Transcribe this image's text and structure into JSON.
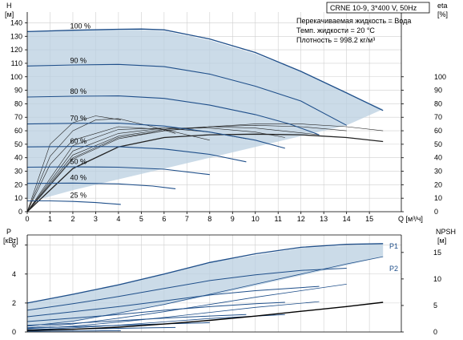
{
  "info": {
    "title": "CRNE 10-9, 3*400 V, 50Hz",
    "lines": [
      "Перекачиваемая жидкость = Вода",
      "Темп. жидкости = 20 °C",
      "Плотность = 998.2 кг/м³"
    ]
  },
  "colors": {
    "curve": "#1f4f8a",
    "eta": "#222222",
    "envelope": "#b9cfe0",
    "grid": "#cfcfcf",
    "npsh": "#000000"
  },
  "chart_data": [
    {
      "type": "line",
      "name": "head",
      "x_unit_label": "Q [м³/ч]",
      "y_left_label": [
        "H",
        "[м]"
      ],
      "y_right_label": [
        "eta",
        "[%]"
      ],
      "xlim": [
        0,
        16.4
      ],
      "ylim": [
        0,
        148
      ],
      "y_right_lim": [
        0,
        148
      ],
      "x_ticks": [
        0,
        1,
        2,
        3,
        4,
        5,
        6,
        7,
        8,
        9,
        10,
        11,
        12,
        13,
        14,
        15
      ],
      "y_left_ticks": [
        0,
        10,
        20,
        30,
        40,
        50,
        60,
        70,
        80,
        90,
        100,
        110,
        120,
        130,
        140
      ],
      "y_right_ticks": [
        0,
        10,
        20,
        30,
        40,
        50,
        60,
        70,
        80,
        90,
        100
      ],
      "grid": true,
      "envelope": [
        [
          0,
          134
        ],
        [
          2,
          134.8
        ],
        [
          4,
          135.5
        ],
        [
          6,
          134
        ],
        [
          8,
          127
        ],
        [
          10,
          117
        ],
        [
          12,
          104
        ],
        [
          14,
          88
        ],
        [
          15.6,
          76
        ],
        [
          14,
          64
        ],
        [
          12,
          56
        ],
        [
          10,
          48
        ],
        [
          8,
          40
        ],
        [
          6,
          32
        ],
        [
          4,
          24
        ],
        [
          2,
          16
        ],
        [
          0.5,
          9
        ],
        [
          0,
          9
        ]
      ],
      "speed_curves": [
        {
          "label": "100 %",
          "label_x": 1.0,
          "points": [
            [
              0,
              133.5
            ],
            [
              2,
              134.5
            ],
            [
              4,
              135.2
            ],
            [
              5,
              135.4
            ],
            [
              6,
              134.8
            ],
            [
              8,
              128
            ],
            [
              10,
              118
            ],
            [
              12,
              104
            ],
            [
              14,
              88
            ],
            [
              15.6,
              75
            ]
          ]
        },
        {
          "label": "90 %",
          "label_x": 1.0,
          "points": [
            [
              0,
              108
            ],
            [
              2,
              108.8
            ],
            [
              4,
              109.2
            ],
            [
              6,
              107.5
            ],
            [
              8,
              102
            ],
            [
              10,
              93
            ],
            [
              12,
              82
            ],
            [
              14,
              64
            ]
          ]
        },
        {
          "label": "80 %",
          "label_x": 1.0,
          "points": [
            [
              0,
              85
            ],
            [
              2,
              85.6
            ],
            [
              4,
              85.8
            ],
            [
              6,
              84
            ],
            [
              8,
              79
            ],
            [
              10,
              72
            ],
            [
              11.5,
              65
            ],
            [
              12.8,
              57
            ]
          ]
        },
        {
          "label": "70 %",
          "label_x": 1.0,
          "points": [
            [
              0,
              65
            ],
            [
              2,
              65.5
            ],
            [
              4,
              65.6
            ],
            [
              6,
              63.5
            ],
            [
              8,
              59
            ],
            [
              10,
              53
            ],
            [
              11.3,
              47
            ]
          ]
        },
        {
          "label": "60 %",
          "label_x": 1.0,
          "points": [
            [
              0,
              48
            ],
            [
              2,
              48.3
            ],
            [
              4,
              48.2
            ],
            [
              6,
              46.5
            ],
            [
              8,
              42.5
            ],
            [
              9.6,
              37
            ]
          ]
        },
        {
          "label": "50 %",
          "label_x": 1.0,
          "points": [
            [
              0,
              33
            ],
            [
              2,
              33.2
            ],
            [
              4,
              33
            ],
            [
              6,
              31.5
            ],
            [
              8,
              27.5
            ]
          ]
        },
        {
          "label": "40 %",
          "label_x": 1.0,
          "points": [
            [
              0,
              21
            ],
            [
              2,
              21.2
            ],
            [
              4,
              20.6
            ],
            [
              5.5,
              19
            ],
            [
              6.5,
              17
            ]
          ]
        },
        {
          "label": "25 %",
          "label_x": 1.0,
          "points": [
            [
              0,
              8
            ],
            [
              1,
              8
            ],
            [
              2,
              7.6
            ],
            [
              3,
              6.8
            ],
            [
              4.1,
              5.4
            ]
          ]
        }
      ],
      "eta_curves": [
        {
          "points": [
            [
              0,
              0
            ],
            [
              2,
              39
            ],
            [
              4,
              54
            ],
            [
              6,
              60
            ],
            [
              8,
              63
            ],
            [
              10,
              65
            ],
            [
              12,
              65
            ],
            [
              14,
              63
            ],
            [
              15.6,
              60
            ]
          ]
        },
        {
          "points": [
            [
              0,
              0
            ],
            [
              2,
              40
            ],
            [
              4,
              55
            ],
            [
              6,
              60
            ],
            [
              8,
              63
            ],
            [
              10,
              64
            ],
            [
              12,
              63
            ],
            [
              14,
              60
            ]
          ]
        },
        {
          "points": [
            [
              0,
              0
            ],
            [
              2,
              42
            ],
            [
              4,
              56
            ],
            [
              6,
              61
            ],
            [
              8,
              63
            ],
            [
              10,
              62
            ],
            [
              12.8,
              57
            ]
          ]
        },
        {
          "points": [
            [
              0,
              0
            ],
            [
              2,
              45
            ],
            [
              4,
              58
            ],
            [
              6,
              62
            ],
            [
              8,
              62
            ],
            [
              10,
              59
            ],
            [
              11.3,
              55
            ]
          ]
        },
        {
          "points": [
            [
              0,
              0
            ],
            [
              2,
              49
            ],
            [
              4,
              61
            ],
            [
              6,
              62
            ],
            [
              8,
              59
            ],
            [
              9.6,
              54
            ]
          ]
        },
        {
          "points": [
            [
              0,
              0
            ],
            [
              1,
              35
            ],
            [
              2,
              53
            ],
            [
              4,
              63
            ],
            [
              6,
              61
            ],
            [
              8,
              53
            ]
          ]
        },
        {
          "points": [
            [
              0,
              0
            ],
            [
              1,
              41
            ],
            [
              2,
              60
            ],
            [
              3,
              68
            ],
            [
              4,
              69
            ],
            [
              5.5,
              63
            ],
            [
              6.5,
              58
            ]
          ]
        },
        {
          "points": [
            [
              0,
              0
            ],
            [
              1,
              50
            ],
            [
              2,
              66
            ],
            [
              3,
              71
            ],
            [
              4.1,
              68
            ]
          ]
        }
      ],
      "eta_main": {
        "points": [
          [
            0,
            0
          ],
          [
            2,
            32
          ],
          [
            4,
            48
          ],
          [
            6,
            55
          ],
          [
            8,
            57
          ],
          [
            10,
            57.5
          ],
          [
            12,
            57
          ],
          [
            14,
            55
          ],
          [
            15.6,
            52
          ]
        ]
      }
    },
    {
      "type": "line",
      "name": "power",
      "y_left_label": [
        "P",
        "[кВт]"
      ],
      "y_right_label": [
        "NPSH",
        "[м]"
      ],
      "xlim": [
        0,
        16.4
      ],
      "ylim": [
        0,
        6.7
      ],
      "y_right_lim": [
        0,
        18.3
      ],
      "y_left_ticks": [
        0,
        2,
        4,
        6
      ],
      "y_right_ticks": [
        0,
        5,
        10,
        15
      ],
      "grid": true,
      "series_labels": [
        "P1",
        "P2"
      ],
      "envelope": [
        [
          0,
          2.0
        ],
        [
          4,
          3.3
        ],
        [
          8,
          4.8
        ],
        [
          12,
          5.8
        ],
        [
          15.6,
          6.1
        ],
        [
          15.6,
          5.2
        ],
        [
          14,
          4.6
        ],
        [
          12,
          3.9
        ],
        [
          10,
          3.2
        ],
        [
          8,
          2.5
        ],
        [
          6,
          1.9
        ],
        [
          4,
          1.25
        ],
        [
          2,
          0.7
        ],
        [
          0,
          0.4
        ]
      ],
      "p1_curves": [
        {
          "points": [
            [
              0,
              2.0
            ],
            [
              2,
              2.6
            ],
            [
              4,
              3.25
            ],
            [
              6,
              4.0
            ],
            [
              8,
              4.8
            ],
            [
              10,
              5.4
            ],
            [
              12,
              5.85
            ],
            [
              14,
              6.05
            ],
            [
              15.6,
              6.1
            ]
          ]
        },
        {
          "points": [
            [
              0,
              1.5
            ],
            [
              2,
              1.95
            ],
            [
              4,
              2.45
            ],
            [
              6,
              3.0
            ],
            [
              8,
              3.55
            ],
            [
              10,
              3.95
            ],
            [
              12,
              4.25
            ],
            [
              14,
              4.4
            ]
          ]
        },
        {
          "points": [
            [
              0,
              1.05
            ],
            [
              2,
              1.4
            ],
            [
              4,
              1.75
            ],
            [
              6,
              2.15
            ],
            [
              8,
              2.55
            ],
            [
              10,
              2.85
            ],
            [
              12.8,
              3.15
            ]
          ]
        },
        {
          "points": [
            [
              0,
              0.72
            ],
            [
              2,
              0.95
            ],
            [
              4,
              1.2
            ],
            [
              6,
              1.5
            ],
            [
              8,
              1.75
            ],
            [
              10,
              1.95
            ],
            [
              11.3,
              2.05
            ]
          ]
        },
        {
          "points": [
            [
              0,
              0.46
            ],
            [
              2,
              0.6
            ],
            [
              4,
              0.78
            ],
            [
              6,
              0.96
            ],
            [
              8,
              1.1
            ],
            [
              9.6,
              1.2
            ]
          ]
        },
        {
          "points": [
            [
              0,
              0.27
            ],
            [
              2,
              0.36
            ],
            [
              4,
              0.46
            ],
            [
              6,
              0.56
            ],
            [
              8,
              0.64
            ]
          ]
        },
        {
          "points": [
            [
              0,
              0.15
            ],
            [
              2,
              0.2
            ],
            [
              4,
              0.25
            ],
            [
              5.5,
              0.29
            ],
            [
              6.5,
              0.31
            ]
          ]
        },
        {
          "points": [
            [
              0,
              0.05
            ],
            [
              1,
              0.06
            ],
            [
              2,
              0.07
            ],
            [
              3,
              0.08
            ],
            [
              4.1,
              0.09
            ]
          ]
        }
      ],
      "p2_curves": [
        {
          "points": [
            [
              0,
              0.4
            ],
            [
              2,
              0.75
            ],
            [
              4,
              1.3
            ],
            [
              6,
              1.9
            ],
            [
              8,
              2.6
            ],
            [
              10,
              3.3
            ],
            [
              12,
              4.0
            ],
            [
              14,
              4.7
            ],
            [
              15.6,
              5.2
            ]
          ]
        },
        {
          "points": [
            [
              0,
              0.3
            ],
            [
              2,
              0.55
            ],
            [
              4,
              0.95
            ],
            [
              6,
              1.4
            ],
            [
              8,
              1.9
            ],
            [
              10,
              2.4
            ],
            [
              12,
              2.85
            ],
            [
              14,
              3.3
            ]
          ]
        },
        {
          "points": [
            [
              0,
              0.22
            ],
            [
              2,
              0.4
            ],
            [
              4,
              0.68
            ],
            [
              6,
              1.0
            ],
            [
              8,
              1.35
            ],
            [
              10,
              1.7
            ],
            [
              12.8,
              2.1
            ]
          ]
        },
        {
          "points": [
            [
              0,
              0.15
            ],
            [
              2,
              0.28
            ],
            [
              4,
              0.47
            ],
            [
              6,
              0.7
            ],
            [
              8,
              0.93
            ],
            [
              11.3,
              1.2
            ]
          ]
        }
      ],
      "npsh": {
        "points": [
          [
            0,
            0.3
          ],
          [
            2,
            0.5
          ],
          [
            4,
            0.9
          ],
          [
            6,
            1.5
          ],
          [
            8,
            2.2
          ],
          [
            10,
            3.0
          ],
          [
            12,
            3.9
          ],
          [
            14,
            4.8
          ],
          [
            15.6,
            5.6
          ]
        ]
      }
    }
  ]
}
